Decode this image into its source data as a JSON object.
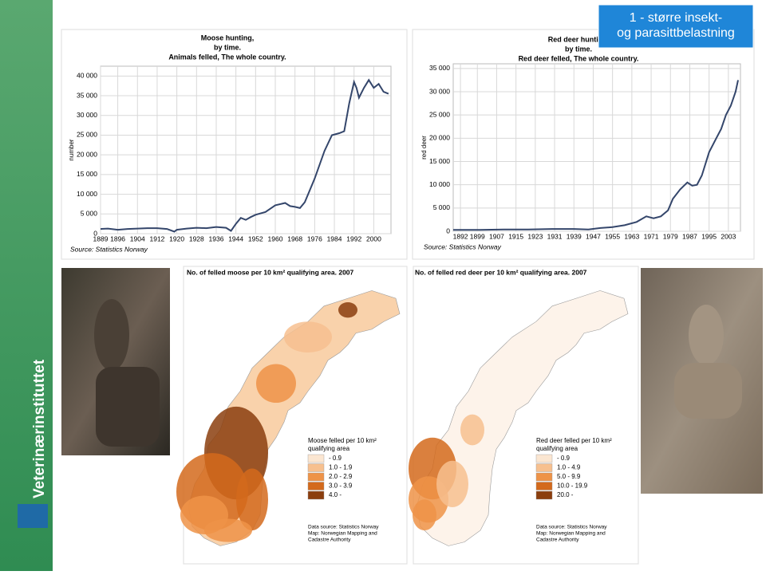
{
  "header": {
    "title": "1 - større insekt- og parasittbelastning"
  },
  "sidebar": {
    "text": "Veterinærinstituttet"
  },
  "chart_data": [
    {
      "type": "line",
      "title": [
        "Moose hunting,",
        "by time.",
        "Animals felled, The whole country."
      ],
      "y_label": "number",
      "source": "Source: Statistics Norway",
      "color": "#34466b",
      "grid": true,
      "xlim": [
        1889,
        2007
      ],
      "ylim": [
        0,
        42500
      ],
      "xticks": [
        1889,
        1896,
        1904,
        1912,
        1920,
        1928,
        1936,
        1944,
        1952,
        1960,
        1968,
        1976,
        1984,
        1992,
        2000
      ],
      "yticks": [
        0,
        {
          "value": 5000,
          "label": "5 000"
        },
        {
          "value": 10000,
          "label": "10 000"
        },
        {
          "value": 15000,
          "label": "15 000"
        },
        {
          "value": 20000,
          "label": "20 000"
        },
        {
          "value": 25000,
          "label": "25 000"
        },
        {
          "value": 30000,
          "label": "30 000"
        },
        {
          "value": 35000,
          "label": "35 000"
        },
        {
          "value": 40000,
          "label": "40 000"
        }
      ],
      "x": [
        1889,
        1892,
        1896,
        1900,
        1904,
        1908,
        1912,
        1916,
        1919,
        1920,
        1924,
        1928,
        1932,
        1936,
        1940,
        1942,
        1944,
        1946,
        1948,
        1950,
        1952,
        1956,
        1960,
        1964,
        1966,
        1968,
        1970,
        1972,
        1976,
        1980,
        1983,
        1986,
        1988,
        1990,
        1992,
        1993,
        1994,
        1996,
        1998,
        2000,
        2002,
        2004,
        2006
      ],
      "values": [
        1200,
        1300,
        1000,
        1200,
        1300,
        1400,
        1400,
        1200,
        500,
        1000,
        1300,
        1500,
        1400,
        1700,
        1500,
        700,
        2500,
        4000,
        3500,
        4200,
        4800,
        5500,
        7200,
        7800,
        7000,
        6800,
        6500,
        8000,
        14000,
        21000,
        25000,
        25500,
        26000,
        33000,
        38500,
        37000,
        34500,
        37000,
        39000,
        37000,
        38000,
        36000,
        35500
      ]
    },
    {
      "type": "line",
      "title": [
        "Red deer hunting,",
        "by time.",
        "Red deer felled, The whole country."
      ],
      "y_label": "red deer",
      "source": "Source: Statistics Norway",
      "color": "#34466b",
      "grid": true,
      "xlim": [
        1889,
        2008
      ],
      "ylim": [
        0,
        36000
      ],
      "xticks": [
        1892,
        1899,
        1907,
        1915,
        1923,
        1931,
        1939,
        1947,
        1955,
        1963,
        1971,
        1979,
        1987,
        1995,
        2003
      ],
      "yticks": [
        0,
        {
          "value": 5000,
          "label": "5 000"
        },
        {
          "value": 10000,
          "label": "10 000"
        },
        {
          "value": 15000,
          "label": "15 000"
        },
        {
          "value": 20000,
          "label": "20 000"
        },
        {
          "value": 25000,
          "label": "25 000"
        },
        {
          "value": 30000,
          "label": "30 000"
        },
        {
          "value": 35000,
          "label": "35 000"
        }
      ],
      "x": [
        1889,
        1900,
        1910,
        1920,
        1930,
        1939,
        1945,
        1950,
        1955,
        1960,
        1965,
        1969,
        1972,
        1975,
        1978,
        1980,
        1983,
        1986,
        1988,
        1990,
        1992,
        1995,
        1998,
        2000,
        2002,
        2004,
        2006,
        2007
      ],
      "values": [
        300,
        300,
        400,
        400,
        500,
        500,
        400,
        700,
        900,
        1300,
        2000,
        3200,
        2800,
        3200,
        4500,
        7000,
        9000,
        10500,
        9800,
        10000,
        12000,
        17000,
        20000,
        22000,
        25000,
        27000,
        30000,
        32500
      ]
    }
  ],
  "maps": [
    {
      "title": "No. of felled moose per 10 km² qualifying area. 2007",
      "legend_title": [
        "Moose felled per 10 km²",
        "qualifying area"
      ],
      "legend": [
        {
          "label": "- 0.9",
          "color": "#fbe6d1"
        },
        {
          "label": "1.0 - 1.9",
          "color": "#f7c08f"
        },
        {
          "label": "2.0 - 2.9",
          "color": "#ee9348"
        },
        {
          "label": "3.0 - 3.9",
          "color": "#d36a1c"
        },
        {
          "label": "4.0 -",
          "color": "#8b3e0e"
        }
      ],
      "source": [
        "Data source: Statistics Norway",
        "Map: Norwegian Mapping and",
        "Cadastre Authority"
      ]
    },
    {
      "title": "No. of felled red deer per 10 km² qualifying area. 2007",
      "legend_title": [
        "Red deer felled per 10 km²",
        "qualifying area"
      ],
      "legend": [
        {
          "label": "- 0.9",
          "color": "#fbe6d1"
        },
        {
          "label": "1.0 - 4.9",
          "color": "#f7c08f"
        },
        {
          "label": "5.0 - 9.9",
          "color": "#ee9348"
        },
        {
          "label": "10.0 - 19.9",
          "color": "#d36a1c"
        },
        {
          "label": "20.0 -",
          "color": "#8b3e0e"
        }
      ],
      "source": [
        "Data source: Statistics Norway",
        "Map: Norwegian Mapping and",
        "Cadastre Authority"
      ]
    }
  ]
}
